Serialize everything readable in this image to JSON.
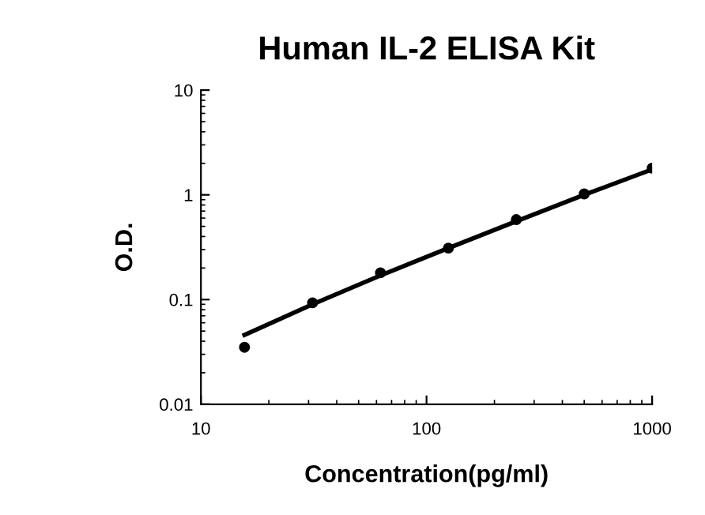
{
  "chart_data": {
    "type": "scatter",
    "title": "Human IL-2 ELISA Kit",
    "xlabel": "Concentration(pg/ml)",
    "ylabel": "O.D.",
    "log": "xy",
    "xlim": [
      10,
      1000
    ],
    "ylim": [
      0.01,
      10
    ],
    "xticks": [
      10,
      100,
      1000
    ],
    "yticks": [
      0.01,
      0.1,
      1,
      10
    ],
    "grid": false,
    "marker": "circle",
    "series": [
      {
        "color": "#000000",
        "x": [
          15.6,
          31.25,
          62.5,
          125,
          250,
          500,
          1000
        ],
        "values": [
          0.035,
          0.093,
          0.18,
          0.31,
          0.58,
          1.02,
          1.8
        ]
      },
      {
        "type": "line",
        "color": "#000000",
        "marker": "none",
        "line_style": "solid",
        "x": [
          15.6,
          31.25,
          62.5,
          125,
          250,
          500,
          1000
        ],
        "values": [
          0.046,
          0.09,
          0.17,
          0.31,
          0.56,
          1.0,
          1.75
        ]
      }
    ]
  }
}
